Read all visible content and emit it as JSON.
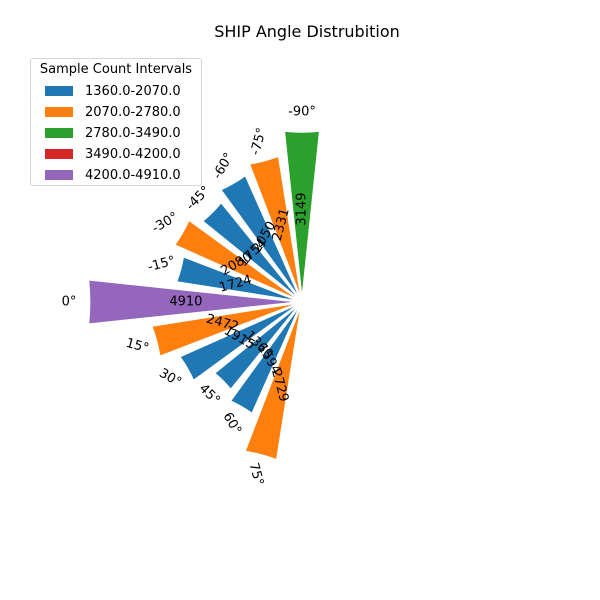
{
  "chart_data": {
    "type": "polar-bar",
    "title": "SHIP Angle Distrubition",
    "angles": [
      0,
      15,
      30,
      45,
      60,
      75,
      -90,
      -75,
      -60,
      -45,
      -30,
      -15
    ],
    "angle_labels": [
      "0°",
      "15°",
      "30°",
      "45°",
      "60°",
      "75°",
      "-90°",
      "-75°",
      "-60°",
      "-45°",
      "-30°",
      "-15°"
    ],
    "values": [
      4910,
      2472,
      1915,
      1360,
      1594,
      2729,
      3149,
      2331,
      2050,
      1754,
      2080,
      1724
    ],
    "value_labels": [
      "4910",
      "2472",
      "1915",
      "1360",
      "1594",
      "2729",
      "3149",
      "2331",
      "2050",
      "1754",
      "2080",
      "1724"
    ],
    "legend": {
      "title": "Sample Count Intervals",
      "placement": "top-left",
      "entries": [
        {
          "label": "1360.0-2070.0",
          "color": "#1f77b4",
          "min": 1360,
          "max": 2070
        },
        {
          "label": "2070.0-2780.0",
          "color": "#ff7f0e",
          "min": 2070,
          "max": 2780
        },
        {
          "label": "2780.0-3490.0",
          "color": "#2ca02c",
          "min": 2780,
          "max": 3490
        },
        {
          "label": "3490.0-4200.0",
          "color": "#d62728",
          "min": 3490,
          "max": 4200
        },
        {
          "label": "4200.0-4910.0",
          "color": "#9467bd",
          "min": 4200,
          "max": 4910
        }
      ]
    },
    "bar_edge_color": "#ffffff",
    "grid": false
  }
}
